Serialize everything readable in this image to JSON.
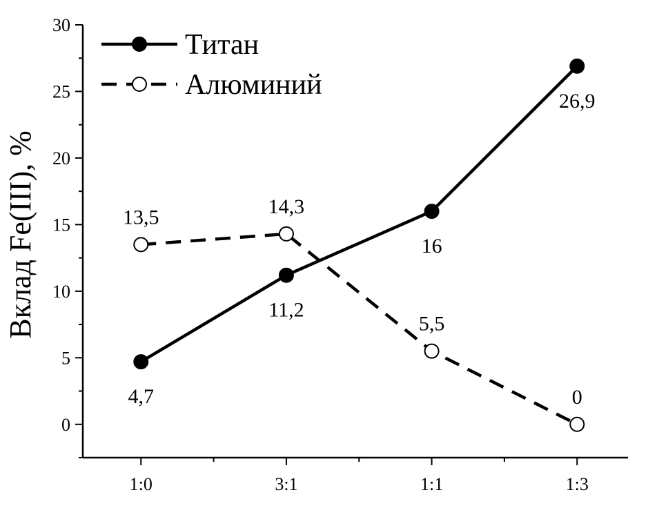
{
  "chart_data": {
    "type": "line",
    "categories": [
      "1:0",
      "3:1",
      "1:1",
      "1:3"
    ],
    "x_positions": [
      1,
      2,
      3,
      4
    ],
    "xlim": [
      0.6,
      4.35
    ],
    "ylabel": "Вклад Fe(III), %",
    "xlabel": "",
    "ylim": [
      -2.5,
      30
    ],
    "yticks": [
      0,
      5,
      10,
      15,
      20,
      25,
      30
    ],
    "grid": false,
    "legend_position": "top-left",
    "series": [
      {
        "name": "Титан",
        "x": [
          1,
          2,
          3,
          4
        ],
        "values": [
          4.7,
          11.2,
          16,
          26.9
        ],
        "labels": [
          "4,7",
          "11,2",
          "16",
          "26,9"
        ],
        "label_side": [
          "below",
          "below",
          "below",
          "below"
        ],
        "line_style": "solid",
        "marker": "filled-circle",
        "color": "#000000"
      },
      {
        "name": "Алюминий",
        "x": [
          1,
          2,
          3,
          4
        ],
        "values": [
          13.5,
          14.3,
          5.5,
          0
        ],
        "labels": [
          "13,5",
          "14,3",
          "5,5",
          "0"
        ],
        "label_side": [
          "above",
          "above",
          "above",
          "above"
        ],
        "line_style": "dashed",
        "marker": "open-circle",
        "color": "#000000"
      }
    ]
  }
}
